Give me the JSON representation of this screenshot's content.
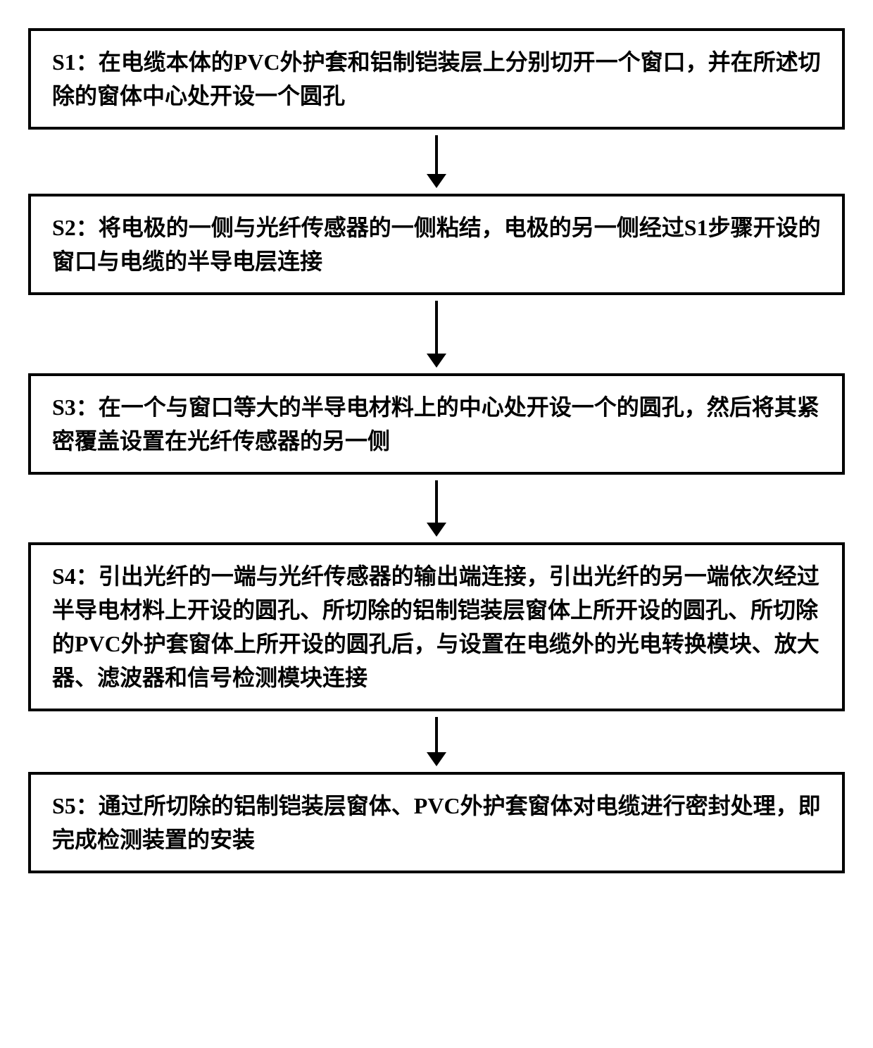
{
  "flowchart": {
    "border_color": "#000000",
    "border_width": 4,
    "background_color": "#ffffff",
    "text_color": "#000000",
    "font_size": 32,
    "font_weight": "bold",
    "arrow_color": "#000000",
    "steps": [
      {
        "id": "s1",
        "text": "S1：在电缆本体的PVC外护套和铝制铠装层上分别切开一个窗口，并在所述切除的窗体中心处开设一个圆孔",
        "arrow_after": true,
        "arrow_height": 55
      },
      {
        "id": "s2",
        "text": "S2：将电极的一侧与光纤传感器的一侧粘结，电极的另一侧经过S1步骤开设的窗口与电缆的半导电层连接",
        "arrow_after": true,
        "arrow_height": 75
      },
      {
        "id": "s3",
        "text": "S3：在一个与窗口等大的半导电材料上的中心处开设一个的圆孔，然后将其紧密覆盖设置在光纤传感器的另一侧",
        "arrow_after": true,
        "arrow_height": 60
      },
      {
        "id": "s4",
        "text": "S4：引出光纤的一端与光纤传感器的输出端连接，引出光纤的另一端依次经过半导电材料上开设的圆孔、所切除的铝制铠装层窗体上所开设的圆孔、所切除的PVC外护套窗体上所开设的圆孔后，与设置在电缆外的光电转换模块、放大器、滤波器和信号检测模块连接",
        "arrow_after": true,
        "arrow_height": 50
      },
      {
        "id": "s5",
        "text": "S5：通过所切除的铝制铠装层窗体、PVC外护套窗体对电缆进行密封处理，即完成检测装置的安装",
        "arrow_after": false,
        "arrow_height": 0
      }
    ]
  }
}
